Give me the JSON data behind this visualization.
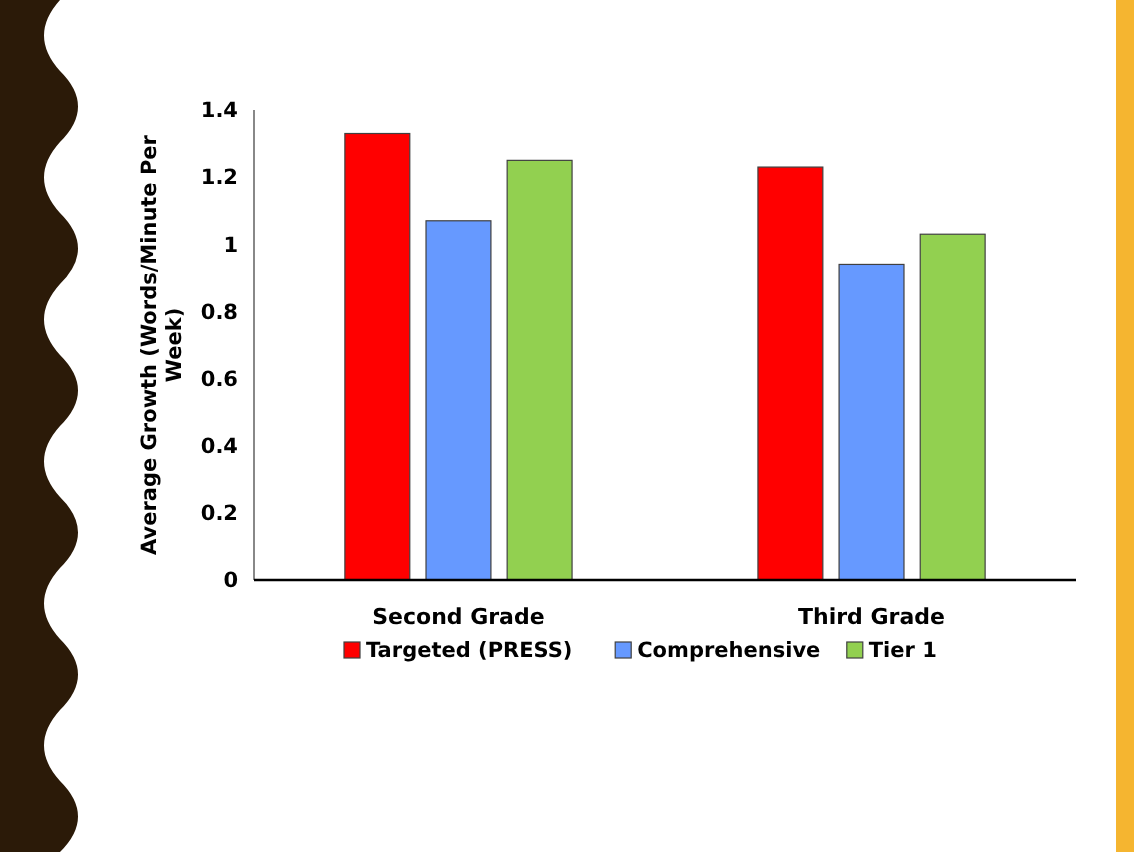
{
  "chart_data": {
    "type": "bar",
    "ylabel": "Average Growth (Words/Minute Per Week)",
    "categories": [
      "Second Grade",
      "Third Grade"
    ],
    "series": [
      {
        "name": "Targeted (PRESS)",
        "color": "#ff0000",
        "values": [
          1.33,
          1.23
        ]
      },
      {
        "name": "Comprehensive",
        "color": "#6699ff",
        "values": [
          1.07,
          0.94
        ]
      },
      {
        "name": "Tier 1",
        "color": "#92d050",
        "values": [
          1.25,
          1.03
        ]
      }
    ],
    "ylim": [
      0,
      1.4
    ],
    "yticks": [
      0,
      0.2,
      0.4,
      0.6,
      0.8,
      1,
      1.2,
      1.4
    ],
    "grid": false,
    "legend": "bottom"
  }
}
